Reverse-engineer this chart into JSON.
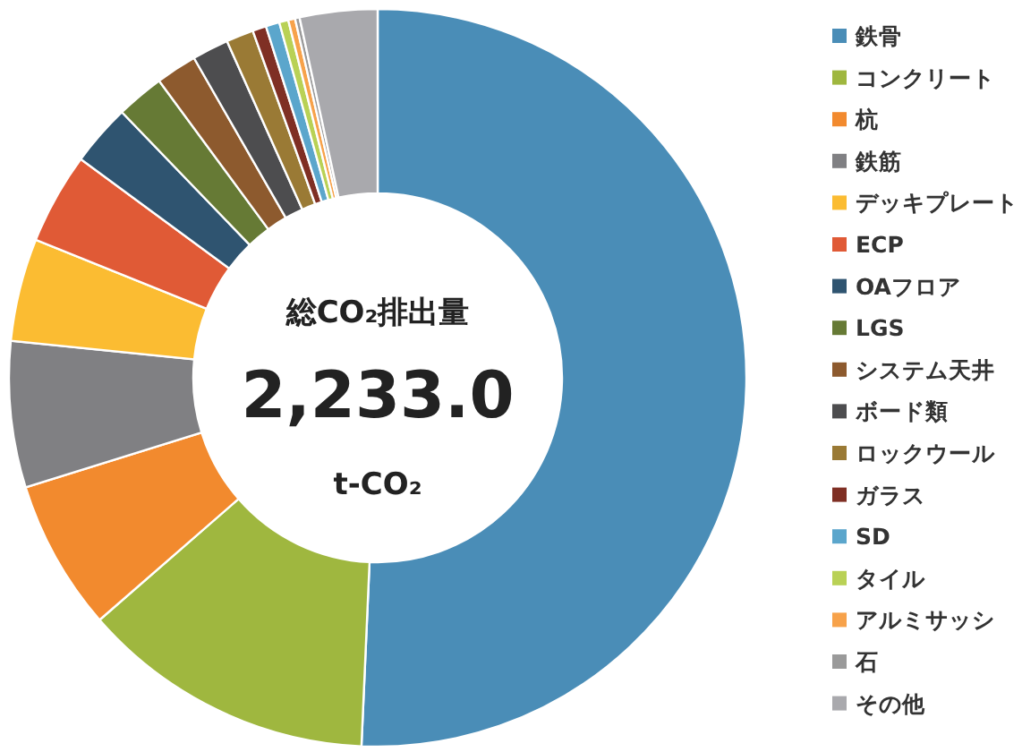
{
  "chart_data": {
    "type": "donut",
    "categories": [
      "鉄骨",
      "コンクリート",
      "杭",
      "鉄筋",
      "デッキプレート",
      "ECP",
      "OAフロア",
      "LGS",
      "システム天井",
      "ボード類",
      "ロックウール",
      "ガラス",
      "SD",
      "タイル",
      "アルミサッシ",
      "石",
      "その他"
    ],
    "values": [
      50.7,
      12.9,
      6.6,
      6.4,
      4.5,
      4.0,
      2.7,
      2.1,
      1.8,
      1.6,
      1.2,
      0.6,
      0.6,
      0.4,
      0.3,
      0.2,
      3.4
    ],
    "colors": [
      "#4a8db7",
      "#9fb73f",
      "#f28a2e",
      "#808083",
      "#fbbc32",
      "#e05a36",
      "#2f5470",
      "#667a35",
      "#8d5a2e",
      "#4d4d4f",
      "#9a7a35",
      "#7f2f24",
      "#5ba6cc",
      "#b9d155",
      "#f7a24a",
      "#9a9a9a",
      "#a9a9ad"
    ],
    "annotations": [
      "総CO₂排出量",
      "2,233.0",
      "t-CO₂"
    ],
    "legend": "right"
  }
}
